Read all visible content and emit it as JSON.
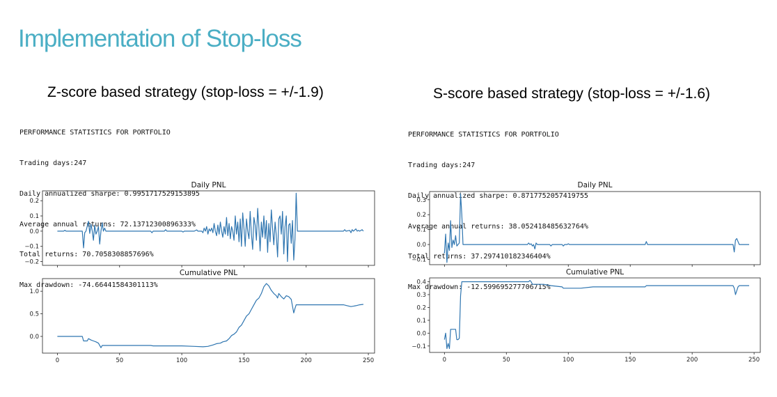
{
  "slide": {
    "title": "Implementation of Stop-loss"
  },
  "panels": [
    {
      "heading": "Z-score based strategy (stop-loss = +/-1.9)",
      "stats": [
        "PERFORMANCE STATISTICS FOR PORTFOLIO",
        "Trading days:247",
        "Daily annualized sharpe: 0.9951717529153895",
        "Average annual returns: 72.13712300896333%",
        "Total returns: 70.7058308857696%",
        "Max drawdown: -74.66441584301113%"
      ]
    },
    {
      "heading": "S-score based strategy (stop-loss = +/-1.6)",
      "stats": [
        "PERFORMANCE STATISTICS FOR PORTFOLIO",
        "Trading days:247",
        "Daily annualized sharpe: 0.8717752057419755",
        "Average annual returns: 38.052418485632764%",
        "Total returns: 37.297410182346404%",
        "Max drawdown: -12.599695277706715%"
      ]
    }
  ],
  "chart_data": [
    {
      "type": "line",
      "title": "Daily PNL",
      "xlim": [
        -12,
        255
      ],
      "ylim": [
        -0.225,
        0.265
      ],
      "yticks": [
        0.2,
        0.1,
        0.0,
        -0.1,
        -0.2
      ],
      "ytick_labels": [
        "0.2",
        "0.1",
        "0.0",
        "−0.1",
        "−0.2"
      ],
      "color": "#2e75b0",
      "points": [
        [
          0,
          0
        ],
        [
          5,
          0
        ],
        [
          6,
          0.006
        ],
        [
          7,
          0
        ],
        [
          20,
          0
        ],
        [
          21,
          -0.11
        ],
        [
          22,
          -0.01
        ],
        [
          23,
          0
        ],
        [
          25,
          0.065
        ],
        [
          26,
          -0.015
        ],
        [
          27,
          0.045
        ],
        [
          28,
          0
        ],
        [
          29,
          -0.06
        ],
        [
          30,
          0.04
        ],
        [
          31,
          -0.02
        ],
        [
          32,
          0
        ],
        [
          33,
          0.03
        ],
        [
          34,
          -0.085
        ],
        [
          35,
          0
        ],
        [
          36,
          0.055
        ],
        [
          37,
          0
        ],
        [
          38,
          0.02
        ],
        [
          39,
          0
        ],
        [
          75,
          0
        ],
        [
          76,
          -0.01
        ],
        [
          77,
          0
        ],
        [
          86,
          0
        ],
        [
          87,
          0.01
        ],
        [
          88,
          0
        ],
        [
          100,
          0
        ],
        [
          101,
          -0.006
        ],
        [
          102,
          0
        ],
        [
          110,
          0
        ],
        [
          112,
          0.008
        ],
        [
          113,
          0
        ],
        [
          116,
          0
        ],
        [
          117,
          -0.01
        ],
        [
          118,
          0.02
        ],
        [
          119,
          0
        ],
        [
          120,
          0.03
        ],
        [
          121,
          -0.02
        ],
        [
          122,
          0.015
        ],
        [
          123,
          0
        ],
        [
          124,
          0.02
        ],
        [
          125,
          -0.01
        ],
        [
          126,
          0.05
        ],
        [
          127,
          0
        ],
        [
          128,
          -0.03
        ],
        [
          129,
          0.04
        ],
        [
          130,
          -0.02
        ],
        [
          131,
          0.06
        ],
        [
          132,
          0
        ],
        [
          133,
          -0.04
        ],
        [
          134,
          0.03
        ],
        [
          135,
          -0.02
        ],
        [
          136,
          0.09
        ],
        [
          137,
          -0.03
        ],
        [
          138,
          0.05
        ],
        [
          139,
          -0.05
        ],
        [
          140,
          0.03
        ],
        [
          141,
          0
        ],
        [
          142,
          -0.06
        ],
        [
          143,
          0.1
        ],
        [
          144,
          -0.02
        ],
        [
          145,
          0.06
        ],
        [
          146,
          -0.07
        ],
        [
          147,
          0.08
        ],
        [
          148,
          -0.1
        ],
        [
          149,
          0.12
        ],
        [
          150,
          0.02
        ],
        [
          151,
          -0.1
        ],
        [
          152,
          0.08
        ],
        [
          153,
          0
        ],
        [
          154,
          -0.05
        ],
        [
          155,
          0.13
        ],
        [
          156,
          -0.02
        ],
        [
          157,
          -0.12
        ],
        [
          158,
          0.09
        ],
        [
          159,
          0.04
        ],
        [
          160,
          -0.06
        ],
        [
          161,
          0.15
        ],
        [
          162,
          0.02
        ],
        [
          163,
          -0.13
        ],
        [
          164,
          0.06
        ],
        [
          165,
          -0.04
        ],
        [
          166,
          0.1
        ],
        [
          167,
          -0.05
        ],
        [
          168,
          0.07
        ],
        [
          169,
          -0.14
        ],
        [
          170,
          0.05
        ],
        [
          171,
          -0.07
        ],
        [
          172,
          0.14
        ],
        [
          173,
          0.02
        ],
        [
          174,
          -0.09
        ],
        [
          175,
          0.06
        ],
        [
          176,
          -0.03
        ],
        [
          177,
          -0.17
        ],
        [
          178,
          0.08
        ],
        [
          179,
          0.1
        ],
        [
          180,
          -0.02
        ],
        [
          181,
          0.13
        ],
        [
          182,
          -0.15
        ],
        [
          183,
          0.03
        ],
        [
          184,
          0.1
        ],
        [
          185,
          -0.2
        ],
        [
          186,
          0.04
        ],
        [
          187,
          0.05
        ],
        [
          188,
          -0.08
        ],
        [
          189,
          0.07
        ],
        [
          190,
          -0.19
        ],
        [
          191,
          -0.05
        ],
        [
          192,
          0.25
        ],
        [
          193,
          0
        ],
        [
          230,
          0
        ],
        [
          231,
          0.01
        ],
        [
          232,
          0
        ],
        [
          235,
          0.005
        ],
        [
          236,
          -0.01
        ],
        [
          237,
          0.01
        ],
        [
          238,
          0
        ],
        [
          240,
          0.015
        ],
        [
          241,
          0
        ],
        [
          242,
          0.005
        ],
        [
          243,
          0
        ],
        [
          245,
          0.01
        ],
        [
          246,
          0
        ]
      ]
    },
    {
      "type": "line",
      "title": "Cumulative PNL",
      "xlim": [
        -12,
        255
      ],
      "ylim": [
        -0.37,
        1.28
      ],
      "yticks": [
        1.0,
        0.5,
        0.0
      ],
      "ytick_labels": [
        "1.0",
        "0.5",
        "0.0"
      ],
      "xticks": [
        0,
        50,
        100,
        150,
        200,
        250
      ],
      "xtick_labels": [
        "0",
        "50",
        "100",
        "150",
        "200",
        "250"
      ],
      "color": "#2e75b0",
      "points": [
        [
          0,
          0
        ],
        [
          20,
          0
        ],
        [
          21,
          -0.1
        ],
        [
          24,
          -0.1
        ],
        [
          25,
          -0.05
        ],
        [
          27,
          -0.08
        ],
        [
          29,
          -0.1
        ],
        [
          31,
          -0.12
        ],
        [
          33,
          -0.15
        ],
        [
          35,
          -0.25
        ],
        [
          36,
          -0.2
        ],
        [
          40,
          -0.2
        ],
        [
          75,
          -0.2
        ],
        [
          77,
          -0.21
        ],
        [
          87,
          -0.21
        ],
        [
          100,
          -0.21
        ],
        [
          110,
          -0.22
        ],
        [
          117,
          -0.23
        ],
        [
          121,
          -0.22
        ],
        [
          125,
          -0.19
        ],
        [
          128,
          -0.16
        ],
        [
          131,
          -0.15
        ],
        [
          133,
          -0.12
        ],
        [
          136,
          -0.1
        ],
        [
          138,
          -0.05
        ],
        [
          140,
          0.02
        ],
        [
          142,
          0.05
        ],
        [
          144,
          0.1
        ],
        [
          146,
          0.2
        ],
        [
          148,
          0.25
        ],
        [
          150,
          0.35
        ],
        [
          152,
          0.45
        ],
        [
          154,
          0.5
        ],
        [
          156,
          0.6
        ],
        [
          158,
          0.7
        ],
        [
          160,
          0.8
        ],
        [
          162,
          0.85
        ],
        [
          164,
          0.95
        ],
        [
          166,
          1.1
        ],
        [
          168,
          1.17
        ],
        [
          170,
          1.12
        ],
        [
          172,
          1.02
        ],
        [
          174,
          0.95
        ],
        [
          176,
          0.9
        ],
        [
          177,
          0.85
        ],
        [
          178,
          0.95
        ],
        [
          180,
          0.88
        ],
        [
          182,
          0.83
        ],
        [
          184,
          0.9
        ],
        [
          186,
          0.88
        ],
        [
          188,
          0.82
        ],
        [
          190,
          0.52
        ],
        [
          191,
          0.62
        ],
        [
          192,
          0.7
        ],
        [
          230,
          0.7
        ],
        [
          233,
          0.68
        ],
        [
          236,
          0.66
        ],
        [
          240,
          0.68
        ],
        [
          243,
          0.7
        ],
        [
          246,
          0.71
        ]
      ]
    },
    {
      "type": "line",
      "title": "Daily PNL",
      "xlim": [
        -12,
        255
      ],
      "ylim": [
        -0.135,
        0.355
      ],
      "yticks": [
        0.3,
        0.2,
        0.1,
        0.0,
        -0.1
      ],
      "ytick_labels": [
        "0.3",
        "0.2",
        "0.1",
        "0.0",
        "−0.1"
      ],
      "color": "#2e75b0",
      "points": [
        [
          0,
          -0.06
        ],
        [
          1,
          0.07
        ],
        [
          2,
          -0.12
        ],
        [
          3,
          0.01
        ],
        [
          4,
          -0.04
        ],
        [
          5,
          0.16
        ],
        [
          6,
          -0.02
        ],
        [
          7,
          0.03
        ],
        [
          8,
          0.0
        ],
        [
          9,
          0.06
        ],
        [
          10,
          -0.01
        ],
        [
          11,
          0.0
        ],
        [
          12,
          0.01
        ],
        [
          13,
          0.34
        ],
        [
          14,
          0.2
        ],
        [
          15,
          0.0
        ],
        [
          67,
          0
        ],
        [
          68,
          0.01
        ],
        [
          69,
          0
        ],
        [
          70,
          0.005
        ],
        [
          71,
          -0.01
        ],
        [
          72,
          0
        ],
        [
          73,
          -0.03
        ],
        [
          74,
          0.01
        ],
        [
          75,
          0
        ],
        [
          85,
          0
        ],
        [
          86,
          -0.01
        ],
        [
          87,
          0
        ],
        [
          95,
          0
        ],
        [
          96,
          -0.01
        ],
        [
          97,
          0
        ],
        [
          99,
          0
        ],
        [
          100,
          0.005
        ],
        [
          101,
          0
        ],
        [
          162,
          0
        ],
        [
          163,
          0.02
        ],
        [
          164,
          0
        ],
        [
          233,
          0
        ],
        [
          234,
          -0.05
        ],
        [
          235,
          0.03
        ],
        [
          236,
          0.04
        ],
        [
          237,
          0.02
        ],
        [
          238,
          0
        ],
        [
          246,
          0
        ]
      ]
    },
    {
      "type": "line",
      "title": "Cumulative PNL",
      "xlim": [
        -12,
        255
      ],
      "ylim": [
        -0.15,
        0.43
      ],
      "yticks": [
        0.4,
        0.3,
        0.2,
        0.1,
        0.0,
        -0.1
      ],
      "ytick_labels": [
        "0.4",
        "0.3",
        "0.2",
        "0.1",
        "0.0",
        "−0.1"
      ],
      "xticks": [
        0,
        50,
        100,
        150,
        200,
        250
      ],
      "xtick_labels": [
        "0",
        "50",
        "100",
        "150",
        "200",
        "250"
      ],
      "color": "#2e75b0",
      "points": [
        [
          0,
          -0.05
        ],
        [
          1,
          0.0
        ],
        [
          2,
          -0.12
        ],
        [
          3,
          -0.08
        ],
        [
          4,
          -0.12
        ],
        [
          5,
          0.03
        ],
        [
          6,
          0.03
        ],
        [
          9,
          0.03
        ],
        [
          10,
          -0.05
        ],
        [
          11,
          -0.05
        ],
        [
          12,
          -0.04
        ],
        [
          13,
          0.29
        ],
        [
          14,
          0.4
        ],
        [
          68,
          0.4
        ],
        [
          69,
          0.41
        ],
        [
          70,
          0.4
        ],
        [
          71,
          0.38
        ],
        [
          73,
          0.38
        ],
        [
          80,
          0.38
        ],
        [
          86,
          0.37
        ],
        [
          95,
          0.36
        ],
        [
          96,
          0.35
        ],
        [
          100,
          0.35
        ],
        [
          110,
          0.35
        ],
        [
          120,
          0.36
        ],
        [
          162,
          0.36
        ],
        [
          163,
          0.37
        ],
        [
          200,
          0.37
        ],
        [
          233,
          0.37
        ],
        [
          234,
          0.35
        ],
        [
          235,
          0.3
        ],
        [
          236,
          0.33
        ],
        [
          237,
          0.36
        ],
        [
          238,
          0.37
        ],
        [
          246,
          0.37
        ]
      ]
    }
  ]
}
